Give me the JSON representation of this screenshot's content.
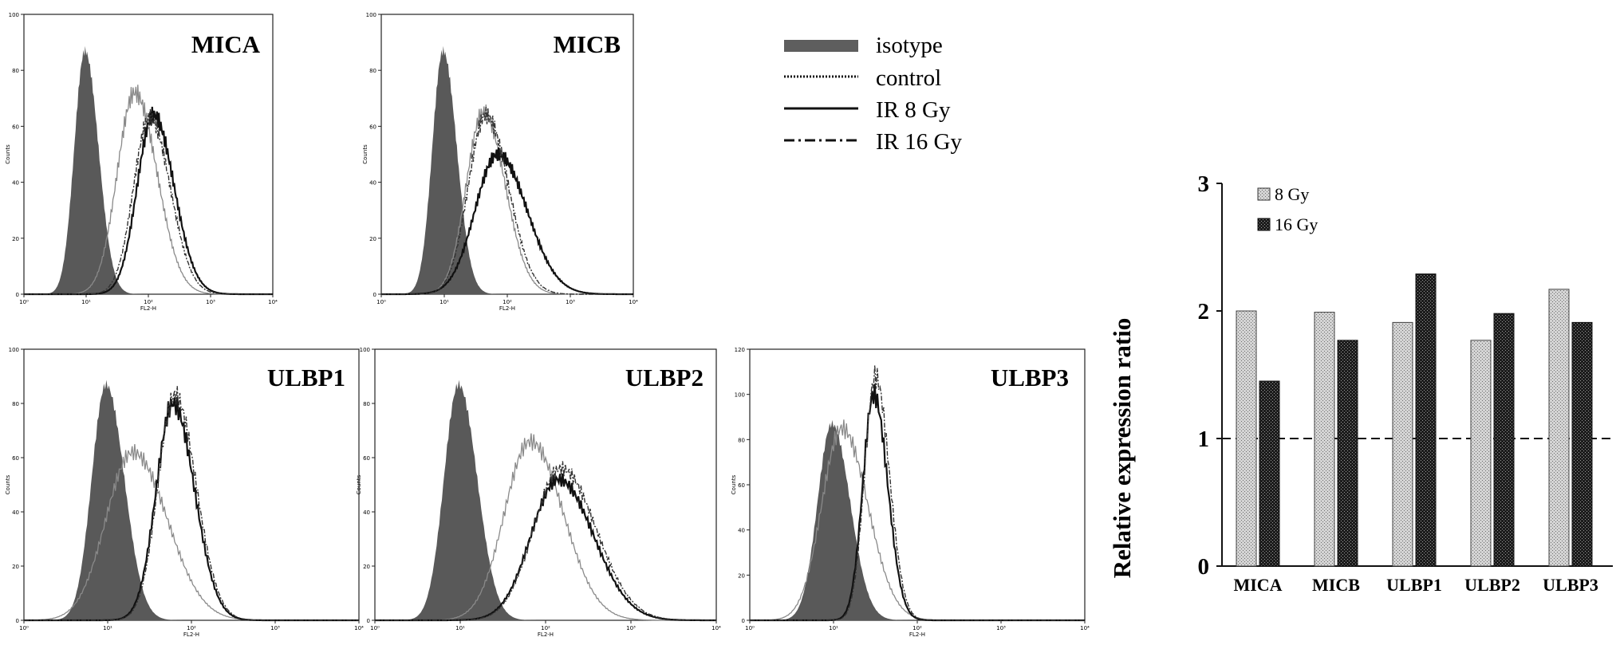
{
  "legend": {
    "entries": [
      {
        "label": "isotype",
        "style": "filled"
      },
      {
        "label": "control",
        "style": "dotted"
      },
      {
        "label": "IR 8 Gy",
        "style": "solid"
      },
      {
        "label": "IR 16 Gy",
        "style": "dashdot"
      }
    ]
  },
  "histogram_axes": {
    "xlabel": "FL2-H",
    "ylabel": "Counts",
    "x_scale": "log",
    "x_ticks": [
      "10⁰",
      "10¹",
      "10²",
      "10³",
      "10⁴"
    ]
  },
  "chart_data": [
    {
      "type": "area",
      "title": "MICA",
      "xlabel": "FL2-H",
      "ylabel": "Counts",
      "x_scale": "log",
      "xlim": [
        0,
        4
      ],
      "ylim": [
        0,
        100
      ],
      "y_ticks": [
        "0",
        "20",
        "40",
        "60",
        "80",
        "100"
      ],
      "series": [
        {
          "name": "isotype",
          "style": "filled",
          "peak_log": 0.98,
          "peak_count": 87,
          "width": 0.17
        },
        {
          "name": "control",
          "style": "dotted",
          "peak_log": 1.78,
          "peak_count": 72,
          "width": 0.28
        },
        {
          "name": "IR 8 Gy",
          "style": "solid",
          "peak_log": 2.08,
          "peak_count": 64,
          "width": 0.26
        },
        {
          "name": "IR 16 Gy",
          "style": "dashdot",
          "peak_log": 2.02,
          "peak_count": 63,
          "width": 0.26
        }
      ]
    },
    {
      "type": "area",
      "title": "MICB",
      "xlabel": "FL2-H",
      "ylabel": "Counts",
      "x_scale": "log",
      "xlim": [
        0,
        4
      ],
      "ylim": [
        0,
        100
      ],
      "y_ticks": [
        "0",
        "20",
        "40",
        "60",
        "80",
        "100"
      ],
      "series": [
        {
          "name": "isotype",
          "style": "filled",
          "peak_log": 0.98,
          "peak_count": 87,
          "width": 0.17
        },
        {
          "name": "control",
          "style": "dotted",
          "peak_log": 1.62,
          "peak_count": 65,
          "width": 0.27
        },
        {
          "name": "IR 8 Gy",
          "style": "solid",
          "peak_log": 1.85,
          "peak_count": 50,
          "width": 0.36
        },
        {
          "name": "IR 16 Gy",
          "style": "dashdot",
          "peak_log": 1.66,
          "peak_count": 64,
          "width": 0.28
        }
      ]
    },
    {
      "type": "area",
      "title": "ULBP1",
      "xlabel": "FL2-H",
      "ylabel": "Counts",
      "x_scale": "log",
      "xlim": [
        0,
        4
      ],
      "ylim": [
        0,
        100
      ],
      "y_ticks": [
        "0",
        "20",
        "40",
        "60",
        "80",
        "100"
      ],
      "series": [
        {
          "name": "isotype",
          "style": "filled",
          "peak_log": 0.98,
          "peak_count": 87,
          "width": 0.17
        },
        {
          "name": "control",
          "style": "dotted",
          "peak_log": 1.3,
          "peak_count": 62,
          "width": 0.32
        },
        {
          "name": "IR 8 Gy",
          "style": "solid",
          "peak_log": 1.78,
          "peak_count": 80,
          "width": 0.2
        },
        {
          "name": "IR 16 Gy",
          "style": "dashdot",
          "peak_log": 1.8,
          "peak_count": 83,
          "width": 0.2
        }
      ]
    },
    {
      "type": "area",
      "title": "ULBP2",
      "xlabel": "FL2-H",
      "ylabel": "Counts",
      "x_scale": "log",
      "xlim": [
        0,
        4
      ],
      "ylim": [
        0,
        100
      ],
      "y_ticks": [
        "0",
        "20",
        "40",
        "60",
        "80",
        "100"
      ],
      "series": [
        {
          "name": "isotype",
          "style": "filled",
          "peak_log": 0.98,
          "peak_count": 87,
          "width": 0.17
        },
        {
          "name": "control",
          "style": "dotted",
          "peak_log": 1.82,
          "peak_count": 66,
          "width": 0.3
        },
        {
          "name": "IR 8 Gy",
          "style": "solid",
          "peak_log": 2.15,
          "peak_count": 52,
          "width": 0.32
        },
        {
          "name": "IR 16 Gy",
          "style": "dashdot",
          "peak_log": 2.18,
          "peak_count": 56,
          "width": 0.32
        }
      ]
    },
    {
      "type": "area",
      "title": "ULBP3",
      "xlabel": "FL2-H",
      "ylabel": "Counts",
      "x_scale": "log",
      "xlim": [
        0,
        4
      ],
      "ylim": [
        0,
        120
      ],
      "y_ticks": [
        "0",
        "20",
        "40",
        "60",
        "80",
        "100",
        "120"
      ],
      "series": [
        {
          "name": "isotype",
          "style": "filled",
          "peak_log": 0.98,
          "peak_count": 87,
          "width": 0.17
        },
        {
          "name": "control",
          "style": "dotted",
          "peak_log": 1.1,
          "peak_count": 85,
          "width": 0.24
        },
        {
          "name": "IR 8 Gy",
          "style": "solid",
          "peak_log": 1.48,
          "peak_count": 100,
          "width": 0.13
        },
        {
          "name": "IR 16 Gy",
          "style": "dashdot",
          "peak_log": 1.5,
          "peak_count": 108,
          "width": 0.13
        }
      ]
    },
    {
      "type": "bar",
      "title": "",
      "ylabel": "Relative expression ratio",
      "xlabel": "",
      "categories": [
        "MICA",
        "MICB",
        "ULBP1",
        "ULBP2",
        "ULBP3"
      ],
      "ylim": [
        0,
        3
      ],
      "y_ticks": [
        0,
        1,
        2,
        3
      ],
      "reference_line": 1,
      "legend_position": "top-left",
      "series": [
        {
          "name": "8 Gy",
          "values": [
            2.0,
            1.99,
            1.91,
            1.77,
            2.17
          ]
        },
        {
          "name": "16 Gy",
          "values": [
            1.45,
            1.77,
            2.29,
            1.98,
            1.91
          ]
        }
      ]
    }
  ]
}
